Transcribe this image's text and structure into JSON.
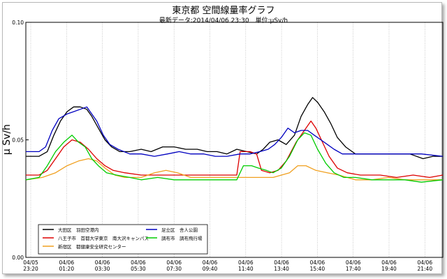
{
  "header": {
    "title": "東京都 空間線量率グラフ",
    "subtitle": "最新データ:2014/04/06 23:30　単位:μSv/h"
  },
  "chart_data": {
    "type": "line",
    "ylabel": "μ Sv/h",
    "ylim": [
      0,
      0.1
    ],
    "y_ticks": [
      "0.00",
      "0.05",
      "0.10"
    ],
    "x_ticks": [
      {
        "date": "04/05",
        "time": "23:20"
      },
      {
        "date": "04/06",
        "time": "01:20"
      },
      {
        "date": "04/06",
        "time": "03:30"
      },
      {
        "date": "04/06",
        "time": "05:30"
      },
      {
        "date": "04/06",
        "time": "07:30"
      },
      {
        "date": "04/06",
        "time": "09:40"
      },
      {
        "date": "04/06",
        "time": "11:40"
      },
      {
        "date": "04/06",
        "time": "13:40"
      },
      {
        "date": "04/06",
        "time": "15:40"
      },
      {
        "date": "04/06",
        "time": "17:40"
      },
      {
        "date": "04/06",
        "time": "19:40"
      },
      {
        "date": "04/06",
        "time": "21:40"
      }
    ],
    "x_range_hours": [
      0,
      25.3
    ],
    "grid": "vertical",
    "legend_position": "bottom-left",
    "series": [
      {
        "name": "大田区　羽田空港内",
        "color": "#000000",
        "points": [
          [
            0,
            0.043
          ],
          [
            0.8,
            0.043
          ],
          [
            1.3,
            0.045
          ],
          [
            1.7,
            0.052
          ],
          [
            2.1,
            0.058
          ],
          [
            2.5,
            0.062
          ],
          [
            2.9,
            0.064
          ],
          [
            3.3,
            0.064
          ],
          [
            3.7,
            0.063
          ],
          [
            4.0,
            0.06
          ],
          [
            4.4,
            0.055
          ],
          [
            4.8,
            0.05
          ],
          [
            5.2,
            0.047
          ],
          [
            5.7,
            0.045
          ],
          [
            6.3,
            0.045
          ],
          [
            7.0,
            0.046
          ],
          [
            7.6,
            0.045
          ],
          [
            8.3,
            0.047
          ],
          [
            9.0,
            0.047
          ],
          [
            9.7,
            0.046
          ],
          [
            10.4,
            0.046
          ],
          [
            11.0,
            0.045
          ],
          [
            11.6,
            0.045
          ],
          [
            12.2,
            0.044
          ],
          [
            12.8,
            0.046
          ],
          [
            13.4,
            0.045
          ],
          [
            14.0,
            0.044
          ],
          [
            14.4,
            0.046
          ],
          [
            14.8,
            0.049
          ],
          [
            15.3,
            0.05
          ],
          [
            15.8,
            0.048
          ],
          [
            16.3,
            0.052
          ],
          [
            16.7,
            0.06
          ],
          [
            17.1,
            0.065
          ],
          [
            17.4,
            0.068
          ],
          [
            17.7,
            0.066
          ],
          [
            18.1,
            0.062
          ],
          [
            18.5,
            0.057
          ],
          [
            18.9,
            0.051
          ],
          [
            19.4,
            0.047
          ],
          [
            20.0,
            0.044
          ],
          [
            20.8,
            0.044
          ],
          [
            21.6,
            0.044
          ],
          [
            22.5,
            0.044
          ],
          [
            23.3,
            0.044
          ],
          [
            24.1,
            0.042
          ],
          [
            24.7,
            0.043
          ],
          [
            25.3,
            0.043
          ]
        ]
      },
      {
        "name": "八王子市　首都大学東京　南大沢キャンパス",
        "color": "#dd0000",
        "points": [
          [
            0,
            0.035
          ],
          [
            0.8,
            0.035
          ],
          [
            1.3,
            0.037
          ],
          [
            1.8,
            0.042
          ],
          [
            2.3,
            0.047
          ],
          [
            2.8,
            0.05
          ],
          [
            3.3,
            0.049
          ],
          [
            3.8,
            0.046
          ],
          [
            4.3,
            0.042
          ],
          [
            4.8,
            0.039
          ],
          [
            5.3,
            0.037
          ],
          [
            6.0,
            0.036
          ],
          [
            7.0,
            0.035
          ],
          [
            8.0,
            0.035
          ],
          [
            9.0,
            0.035
          ],
          [
            10.0,
            0.035
          ],
          [
            11.0,
            0.035
          ],
          [
            12.0,
            0.035
          ],
          [
            12.8,
            0.035
          ],
          [
            13.0,
            0.045
          ],
          [
            13.6,
            0.045
          ],
          [
            14.0,
            0.044
          ],
          [
            14.3,
            0.037
          ],
          [
            14.8,
            0.036
          ],
          [
            15.3,
            0.037
          ],
          [
            15.8,
            0.041
          ],
          [
            16.4,
            0.049
          ],
          [
            16.9,
            0.054
          ],
          [
            17.3,
            0.058
          ],
          [
            17.6,
            0.055
          ],
          [
            18.0,
            0.049
          ],
          [
            18.4,
            0.043
          ],
          [
            18.9,
            0.038
          ],
          [
            19.5,
            0.036
          ],
          [
            20.3,
            0.035
          ],
          [
            21.5,
            0.035
          ],
          [
            22.5,
            0.034
          ],
          [
            23.5,
            0.035
          ],
          [
            24.5,
            0.034
          ],
          [
            25.3,
            0.035
          ]
        ]
      },
      {
        "name": "新宿区　都健康安全研究センター",
        "color": "#f0a020",
        "points": [
          [
            0,
            0.033
          ],
          [
            1.0,
            0.034
          ],
          [
            1.8,
            0.036
          ],
          [
            2.5,
            0.039
          ],
          [
            3.2,
            0.041
          ],
          [
            3.8,
            0.042
          ],
          [
            4.3,
            0.041
          ],
          [
            4.8,
            0.038
          ],
          [
            5.4,
            0.035
          ],
          [
            6.0,
            0.034
          ],
          [
            7.0,
            0.034
          ],
          [
            7.8,
            0.036
          ],
          [
            8.5,
            0.037
          ],
          [
            9.2,
            0.036
          ],
          [
            10.0,
            0.034
          ],
          [
            11.0,
            0.034
          ],
          [
            12.0,
            0.034
          ],
          [
            13.0,
            0.034
          ],
          [
            14.0,
            0.034
          ],
          [
            15.0,
            0.034
          ],
          [
            16.0,
            0.036
          ],
          [
            16.5,
            0.039
          ],
          [
            17.0,
            0.039
          ],
          [
            17.6,
            0.037
          ],
          [
            18.3,
            0.036
          ],
          [
            19.0,
            0.035
          ],
          [
            20.0,
            0.033
          ],
          [
            21.0,
            0.033
          ],
          [
            22.0,
            0.034
          ],
          [
            23.0,
            0.033
          ],
          [
            24.0,
            0.033
          ],
          [
            25.3,
            0.033
          ]
        ]
      },
      {
        "name": "足立区　舎人公園",
        "color": "#0000c0",
        "points": [
          [
            0,
            0.045
          ],
          [
            0.8,
            0.045
          ],
          [
            1.2,
            0.047
          ],
          [
            1.6,
            0.054
          ],
          [
            2.0,
            0.059
          ],
          [
            2.5,
            0.061
          ],
          [
            2.9,
            0.062
          ],
          [
            3.3,
            0.063
          ],
          [
            3.7,
            0.064
          ],
          [
            4.0,
            0.061
          ],
          [
            4.3,
            0.058
          ],
          [
            4.7,
            0.052
          ],
          [
            5.1,
            0.048
          ],
          [
            5.6,
            0.046
          ],
          [
            6.3,
            0.044
          ],
          [
            7.0,
            0.044
          ],
          [
            7.8,
            0.043
          ],
          [
            8.6,
            0.044
          ],
          [
            9.3,
            0.045
          ],
          [
            10.0,
            0.044
          ],
          [
            10.8,
            0.044
          ],
          [
            11.5,
            0.043
          ],
          [
            12.2,
            0.043
          ],
          [
            13.0,
            0.044
          ],
          [
            13.6,
            0.044
          ],
          [
            14.2,
            0.045
          ],
          [
            14.7,
            0.046
          ],
          [
            15.1,
            0.048
          ],
          [
            15.5,
            0.051
          ],
          [
            15.9,
            0.055
          ],
          [
            16.3,
            0.053
          ],
          [
            16.7,
            0.054
          ],
          [
            17.1,
            0.054
          ],
          [
            17.5,
            0.052
          ],
          [
            17.9,
            0.05
          ],
          [
            18.3,
            0.048
          ],
          [
            18.7,
            0.046
          ],
          [
            19.2,
            0.044
          ],
          [
            20.0,
            0.044
          ],
          [
            21.0,
            0.044
          ],
          [
            22.0,
            0.044
          ],
          [
            23.0,
            0.044
          ],
          [
            24.0,
            0.044
          ],
          [
            25.3,
            0.043
          ]
        ]
      },
      {
        "name": "調布市　調布飛行場",
        "color": "#00cc00",
        "points": [
          [
            0,
            0.033
          ],
          [
            0.8,
            0.034
          ],
          [
            1.3,
            0.039
          ],
          [
            1.8,
            0.045
          ],
          [
            2.3,
            0.049
          ],
          [
            2.8,
            0.052
          ],
          [
            3.2,
            0.049
          ],
          [
            3.6,
            0.047
          ],
          [
            4.0,
            0.042
          ],
          [
            4.4,
            0.039
          ],
          [
            4.9,
            0.036
          ],
          [
            5.5,
            0.035
          ],
          [
            6.3,
            0.034
          ],
          [
            7.0,
            0.033
          ],
          [
            8.0,
            0.034
          ],
          [
            9.0,
            0.033
          ],
          [
            10.0,
            0.033
          ],
          [
            11.0,
            0.033
          ],
          [
            12.0,
            0.033
          ],
          [
            12.8,
            0.033
          ],
          [
            13.2,
            0.039
          ],
          [
            13.7,
            0.039
          ],
          [
            14.1,
            0.038
          ],
          [
            14.6,
            0.037
          ],
          [
            15.0,
            0.036
          ],
          [
            15.5,
            0.038
          ],
          [
            16.0,
            0.043
          ],
          [
            16.5,
            0.05
          ],
          [
            16.9,
            0.053
          ],
          [
            17.3,
            0.052
          ],
          [
            17.7,
            0.046
          ],
          [
            18.2,
            0.04
          ],
          [
            18.7,
            0.036
          ],
          [
            19.3,
            0.034
          ],
          [
            20.0,
            0.034
          ],
          [
            21.0,
            0.033
          ],
          [
            22.0,
            0.033
          ],
          [
            23.0,
            0.033
          ],
          [
            24.0,
            0.032
          ],
          [
            25.3,
            0.033
          ]
        ]
      }
    ]
  }
}
